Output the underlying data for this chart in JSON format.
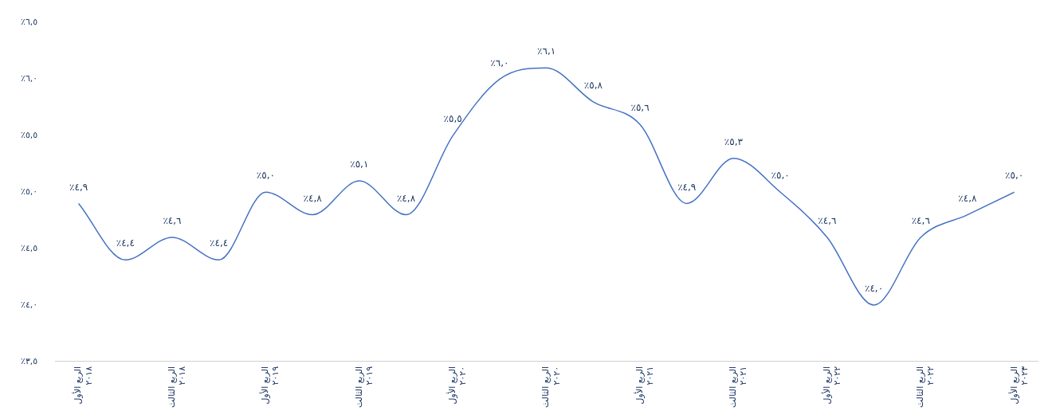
{
  "chart_data": {
    "type": "line",
    "categories": [
      "الربع الأول\n٢٠١٨",
      null,
      "الربع الثالث\n٢٠١٨",
      null,
      "الربع الأول\n٢٠١٩",
      null,
      "الربع الثالث\n٢٠١٩",
      null,
      "الربع الأول\n٢٠٢٠",
      null,
      "الربع الثالث\n٢٠٢٠",
      null,
      "الربع الأول\n٢٠٢١",
      null,
      "الربع الثالث\n٢٠٢١",
      null,
      "الربع الأول\n٢٠٢٢",
      null,
      "الربع الثالث\n٢٠٢٢",
      null,
      "الربع الأول\n٢٠٢٣"
    ],
    "series": [
      {
        "color": "#4472c4",
        "values": [
          4.9,
          4.4,
          4.6,
          4.4,
          5.0,
          4.8,
          5.1,
          4.8,
          5.5,
          6.0,
          6.1,
          5.8,
          5.6,
          4.9,
          5.3,
          5.0,
          4.6,
          4.0,
          4.6,
          4.8,
          5.0
        ],
        "value_labels": [
          "٪٤,٩",
          "٪٤,٤",
          "٪٤,٦",
          "٪٤,٤",
          "٪٥,٠",
          "٪٤,٨",
          "٪٥,١",
          "٪٤,٨",
          "٪٥,٥",
          "٪٦,٠",
          "٪٦,١",
          "٪٥,٨",
          "٪٥,٦",
          "٪٤,٩",
          "٪٥,٣",
          "٪٥,٠",
          "٪٤,٦",
          "٪٤,٠",
          "٪٤,٦",
          "٪٤,٨",
          "٪٥,٠"
        ]
      }
    ],
    "ylim": [
      3.5,
      6.5
    ],
    "yticks": [
      {
        "value": 3.5,
        "label": "٪٣,٥"
      },
      {
        "value": 4,
        "label": "٪٤,٠"
      },
      {
        "value": 4.5,
        "label": "٪٤,٥"
      },
      {
        "value": 5,
        "label": "٪٥,٠"
      },
      {
        "value": 5.5,
        "label": "٪٥,٥"
      },
      {
        "value": 6,
        "label": "٪٦,٠"
      },
      {
        "value": 6.5,
        "label": "٪٦,٥"
      }
    ],
    "grid": false,
    "legend": false,
    "marker": "none",
    "line_style": "solid"
  }
}
